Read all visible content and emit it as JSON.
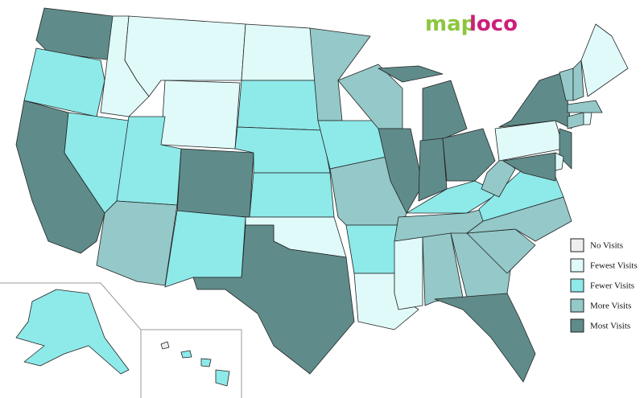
{
  "logo": [
    "map",
    "loco"
  ],
  "legend": [
    {
      "label": "No Visits",
      "color": "#eeeeee"
    },
    {
      "label": "Fewest Visits",
      "color": "#e0fafa"
    },
    {
      "label": "Fewer Visits",
      "color": "#8ee9e9"
    },
    {
      "label": "More Visits",
      "color": "#95c8c8"
    },
    {
      "label": "Most Visits",
      "color": "#5f8c8a"
    }
  ],
  "regions": [
    4,
    2,
    4,
    1,
    2,
    1,
    1,
    2,
    3,
    4,
    2,
    1,
    2,
    2,
    2,
    1,
    4,
    3,
    2,
    3,
    2,
    1,
    3,
    4,
    4,
    4,
    4,
    4,
    2,
    3,
    1,
    3,
    3,
    4,
    3,
    3,
    2,
    3,
    1,
    4,
    4,
    4,
    3,
    1,
    3,
    3,
    3,
    1,
    1,
    2,
    0,
    2,
    2,
    2
  ]
}
